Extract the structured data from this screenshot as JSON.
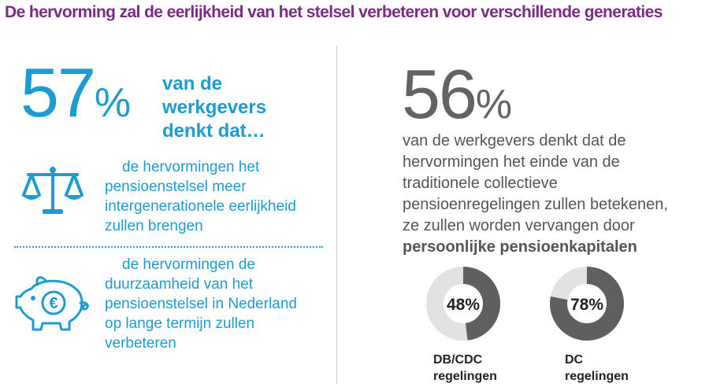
{
  "title": "De hervorming zal de eerlijkheid van het stelsel verbeteren voor verschillende generaties",
  "left": {
    "stat_number": "57",
    "stat_percent": "%",
    "lead_lines": [
      "van de",
      "werkgevers",
      "denkt dat…"
    ],
    "items": [
      {
        "icon": "scale-icon",
        "text_lines": [
          "de hervormingen het",
          "pensioenstelsel meer",
          "intergenerationele eerlijkheid",
          "zullen brengen"
        ]
      },
      {
        "icon": "piggy-bank-euro-icon",
        "text_lines": [
          "de hervormingen de",
          "duurzaamheid van het",
          "pensioenstelsel in Nederland",
          "op lange termijn zullen",
          "verbeteren"
        ]
      }
    ]
  },
  "right": {
    "stat_number": "56",
    "stat_percent": "%",
    "body_lines": [
      "van de werkgevers denkt dat de",
      "hervormingen het einde van de",
      "traditionele collectieve",
      "pensioenregelingen zullen betekenen,",
      "ze zullen worden vervangen door"
    ],
    "body_bold": "persoonlijke pensioenkapitalen",
    "donuts": [
      {
        "label": "48%",
        "value": 48,
        "caption_lines": [
          "DB/CDC",
          "regelingen"
        ]
      },
      {
        "label": "78%",
        "value": 78,
        "caption_lines": [
          "DC",
          "regelingen"
        ]
      }
    ]
  },
  "colors": {
    "title": "#7b2a86",
    "accent_blue": "#1f9bd3",
    "stat_grey": "#636363",
    "donut_fill": "#5f5f5f",
    "donut_track": "#e2e2e2"
  }
}
